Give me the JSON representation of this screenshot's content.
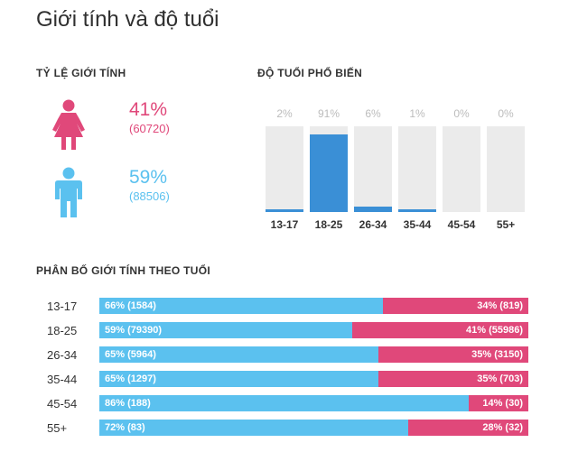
{
  "title": "Giới tính và độ tuổi",
  "gender_ratio": {
    "label": "TỶ LỆ GIỚI TÍNH",
    "female": {
      "percent": "41%",
      "count": "(60720)",
      "color": "#e0487a",
      "icon": "female-icon"
    },
    "male": {
      "percent": "59%",
      "count": "(88506)",
      "color": "#5bc1ef",
      "icon": "male-icon"
    }
  },
  "popular_age": {
    "label": "ĐỘ TUỔI PHỔ BIẾN",
    "bar_color": "#3a8fd6",
    "columns": [
      {
        "age": "13-17",
        "percent_label": "2%",
        "value": 2
      },
      {
        "age": "18-25",
        "percent_label": "91%",
        "value": 91
      },
      {
        "age": "26-34",
        "percent_label": "6%",
        "value": 6
      },
      {
        "age": "35-44",
        "percent_label": "1%",
        "value": 1
      },
      {
        "age": "45-54",
        "percent_label": "0%",
        "value": 0
      },
      {
        "age": "55+",
        "percent_label": "0%",
        "value": 0
      }
    ]
  },
  "distribution": {
    "label": "PHÂN BỐ GIỚI TÍNH THEO TUỔI",
    "rows": [
      {
        "age": "13-17",
        "male_pct": 66,
        "male_text": "66% (1584)",
        "female_text": "34% (819)"
      },
      {
        "age": "18-25",
        "male_pct": 59,
        "male_text": "59% (79390)",
        "female_text": "41% (55986)"
      },
      {
        "age": "26-34",
        "male_pct": 65,
        "male_text": "65% (5964)",
        "female_text": "35% (3150)"
      },
      {
        "age": "35-44",
        "male_pct": 65,
        "male_text": "65% (1297)",
        "female_text": "35% (703)"
      },
      {
        "age": "45-54",
        "male_pct": 86,
        "male_text": "86% (188)",
        "female_text": "14% (30)"
      },
      {
        "age": "55+",
        "male_pct": 72,
        "male_text": "72% (83)",
        "female_text": "28% (32)"
      }
    ]
  }
}
